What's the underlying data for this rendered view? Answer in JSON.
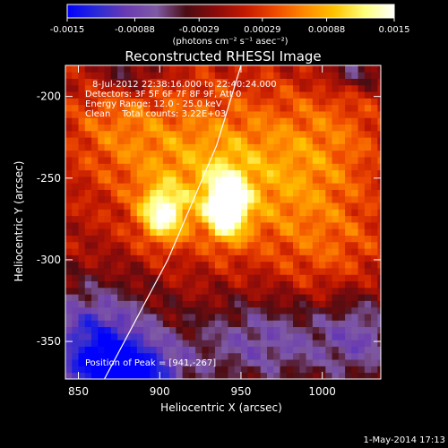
{
  "colors": {
    "background": "#000000",
    "foreground": "#ffffff",
    "limb": "#ffffff",
    "colormap": [
      "#0000ff",
      "#2a2ad6",
      "#6b3bb0",
      "#7f5aa5",
      "#4a0c12",
      "#8a0b0b",
      "#c41a00",
      "#ef4a00",
      "#ff8a00",
      "#ffc400",
      "#ffff7a",
      "#ffffff"
    ]
  },
  "colorbar": {
    "tick_labels": [
      "-0.0015",
      "-0.00088",
      "-0.00029",
      "0.00029",
      "0.00088",
      "0.0015"
    ],
    "tick_values": [
      -0.0015,
      -0.00088,
      -0.00029,
      0.00029,
      0.00088,
      0.0015
    ],
    "range": [
      -0.0015,
      0.0015
    ],
    "unit_label": "(photons cm⁻² s⁻¹ asec⁻²)"
  },
  "chart_data": {
    "type": "heatmap",
    "title": "Reconstructed RHESSI Image",
    "xlabel": "Heliocentric X (arcsec)",
    "ylabel": "Heliocentric Y (arcsec)",
    "xlim": [
      842,
      1036
    ],
    "ylim": [
      -373,
      -181
    ],
    "x_ticks": [
      850,
      900,
      950,
      1000
    ],
    "y_ticks": [
      -200,
      -250,
      -300,
      -350
    ],
    "x_tick_labels": [
      "850",
      "900",
      "950",
      "1000"
    ],
    "y_tick_labels": [
      "-200",
      "-250",
      "-300",
      "-350"
    ],
    "annotations": [
      "8-Jul-2012 22:38:16.000 to 22:40:24.000",
      "Detectors: 3F 5F 6F 7F 8F 9F, Att 0",
      "Energy Range: 12.0 - 25.0 keV",
      "Clean    Total counts: 3.22E+03"
    ],
    "peak_label": "Position of Peak = [941,-267]",
    "peak": [
      941,
      -267
    ],
    "sources": [
      {
        "x": 941,
        "y": -267,
        "sx": 9,
        "sy": 14,
        "amp": 0.0016
      },
      {
        "x": 902,
        "y": -272,
        "sx": 10,
        "sy": 12,
        "amp": 0.0012
      },
      {
        "x": 925,
        "y": -240,
        "sx": 40,
        "sy": 32,
        "amp": 0.00075
      },
      {
        "x": 985,
        "y": -258,
        "sx": 30,
        "sy": 35,
        "amp": 0.00045
      },
      {
        "x": 870,
        "y": -215,
        "sx": 22,
        "sy": 22,
        "amp": 0.00035
      },
      {
        "x": 1010,
        "y": -220,
        "sx": 25,
        "sy": 25,
        "amp": 0.0003
      },
      {
        "x": 1015,
        "y": -300,
        "sx": 25,
        "sy": 25,
        "amp": 0.0003
      },
      {
        "x": 860,
        "y": -345,
        "sx": 26,
        "sy": 22,
        "amp": -0.0011
      },
      {
        "x": 880,
        "y": -370,
        "sx": 24,
        "sy": 14,
        "amp": -0.0014
      },
      {
        "x": 965,
        "y": -350,
        "sx": 35,
        "sy": 20,
        "amp": -0.0008
      },
      {
        "x": 1025,
        "y": -345,
        "sx": 18,
        "sy": 22,
        "amp": -0.0007
      },
      {
        "x": 1020,
        "y": -185,
        "sx": 14,
        "sy": 8,
        "amp": -0.0006
      },
      {
        "x": 880,
        "y": -186,
        "sx": 14,
        "sy": 8,
        "amp": -0.0006
      }
    ],
    "limb_curve": [
      [
        866,
        -373
      ],
      [
        905,
        -300
      ],
      [
        935,
        -230
      ],
      [
        950,
        -181
      ]
    ]
  },
  "footer": {
    "date_stamp": "1-May-2014 17:13"
  }
}
